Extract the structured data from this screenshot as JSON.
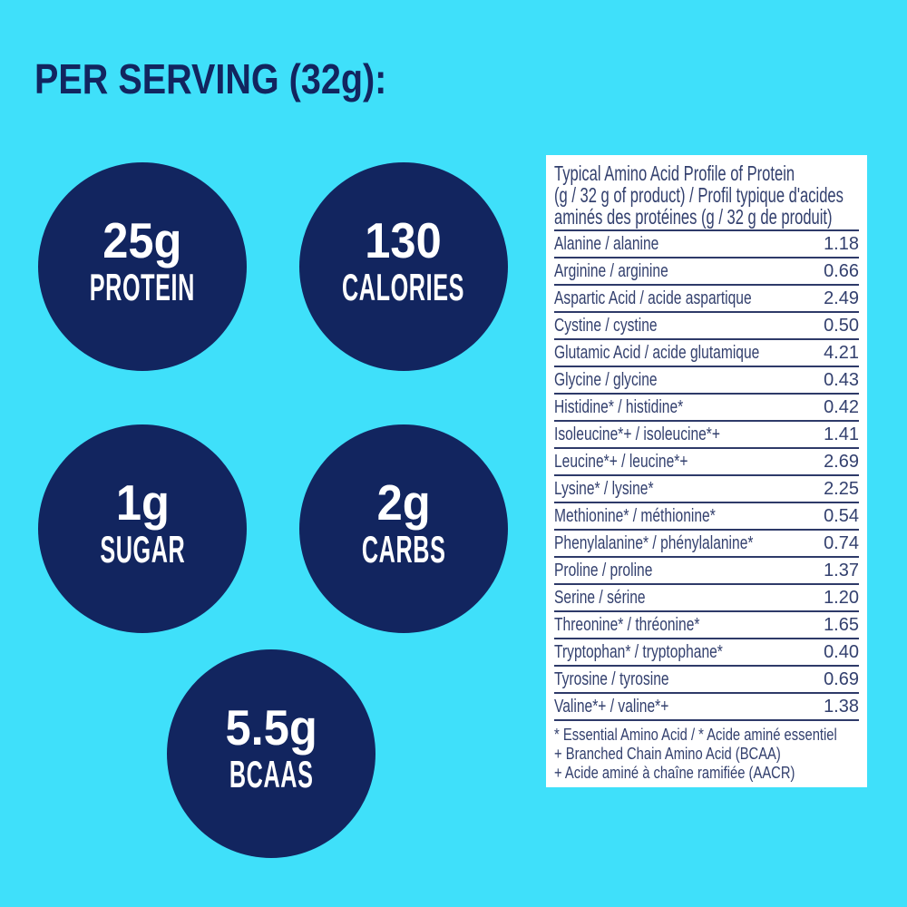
{
  "colors": {
    "background": "#3FE0FA",
    "navy": "#12255F",
    "table_text": "#33406E",
    "table_line": "#2E3A69",
    "white": "#FFFFFF"
  },
  "title": "PER SERVING (32g):",
  "stats": [
    {
      "id": "protein",
      "value": "25g",
      "label": "PROTEIN"
    },
    {
      "id": "calories",
      "value": "130",
      "label": "CALORIES"
    },
    {
      "id": "sugar",
      "value": "1g",
      "label": "SUGAR"
    },
    {
      "id": "carbs",
      "value": "2g",
      "label": "CARBS"
    },
    {
      "id": "bcaas",
      "value": "5.5g",
      "label": "BCAAS"
    }
  ],
  "amino_table": {
    "header_lines": [
      "Typical Amino Acid Profile of Protein",
      "(g / 32 g of product) / Profil typique d'acides",
      "aminés des protéines (g / 32 g de produit)"
    ],
    "rows": [
      {
        "name": "Alanine / alanine",
        "value": "1.18"
      },
      {
        "name": "Arginine / arginine",
        "value": "0.66"
      },
      {
        "name": "Aspartic Acid / acide aspartique",
        "value": "2.49"
      },
      {
        "name": "Cystine / cystine",
        "value": "0.50"
      },
      {
        "name": "Glutamic Acid / acide glutamique",
        "value": "4.21"
      },
      {
        "name": "Glycine / glycine",
        "value": "0.43"
      },
      {
        "name": "Histidine* / histidine*",
        "value": "0.42"
      },
      {
        "name": "Isoleucine*+ / isoleucine*+",
        "value": "1.41"
      },
      {
        "name": "Leucine*+ / leucine*+",
        "value": "2.69"
      },
      {
        "name": "Lysine* / lysine*",
        "value": "2.25"
      },
      {
        "name": "Methionine* / méthionine*",
        "value": "0.54"
      },
      {
        "name": "Phenylalanine* / phénylalanine*",
        "value": "0.74"
      },
      {
        "name": "Proline / proline",
        "value": "1.37"
      },
      {
        "name": "Serine / sérine",
        "value": "1.20"
      },
      {
        "name": "Threonine* / thréonine*",
        "value": "1.65"
      },
      {
        "name": "Tryptophan* / tryptophane*",
        "value": "0.40"
      },
      {
        "name": "Tyrosine / tyrosine",
        "value": "0.69"
      },
      {
        "name": "Valine*+ / valine*+",
        "value": "1.38"
      }
    ],
    "footnotes": [
      "* Essential Amino Acid / * Acide aminé essentiel",
      "+ Branched Chain Amino Acid (BCAA)",
      "+ Acide aminé à chaîne ramifiée (AACR)"
    ]
  }
}
